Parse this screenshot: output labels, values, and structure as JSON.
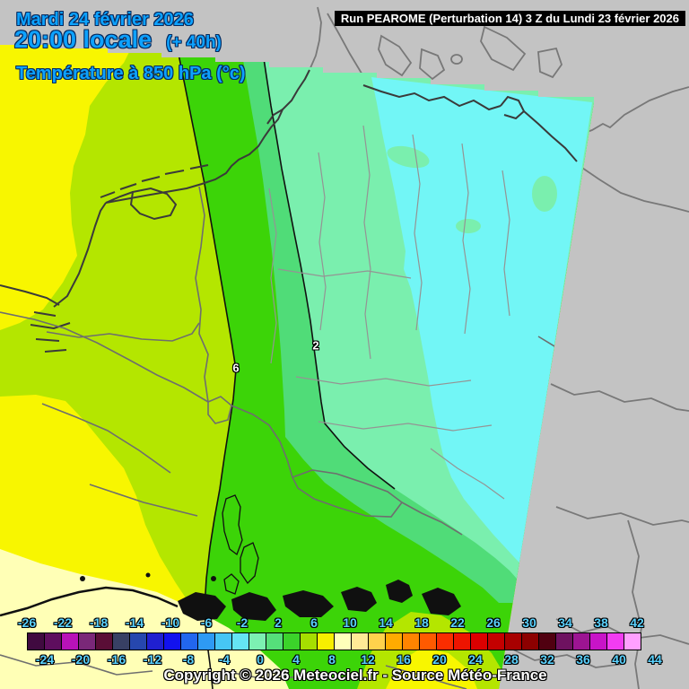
{
  "header": {
    "date_line": "Mardi 24 février 2026",
    "time_line": "20:00 locale",
    "time_offset": "(+ 40h)",
    "param_line": "Température à 850 hPa (°c)",
    "text_color": "#0da2ff"
  },
  "run_banner": {
    "text": "Run PEAROME (Perturbation 14) 3 Z du Lundi 23 février 2026"
  },
  "map": {
    "isotherms": [
      {
        "label": "6"
      },
      {
        "label": "2"
      }
    ],
    "region_colors": {
      "outside": "#c3c3c3",
      "pale_yellow": "#ffffb6",
      "yellow": "#f8f600",
      "yellow_green": "#b4e600",
      "green": "#3cd408",
      "cool_green": "#50dc78",
      "spring_green": "#7aefae",
      "cyan": "#72f6f6"
    },
    "line_colors": {
      "coast_inside": "#3a3a3a",
      "coast_outside": "#787878",
      "border": "#6e6e6e",
      "state_border": "#949494",
      "isotherm": "#101010"
    }
  },
  "colorbar": {
    "label_color": "#5ad2ff",
    "top_labels": [
      "-26",
      "-22",
      "-18",
      "-14",
      "-10",
      "-6",
      "-2",
      "2",
      "6",
      "10",
      "14",
      "18",
      "22",
      "26",
      "30",
      "34",
      "38",
      "42"
    ],
    "bottom_labels": [
      "-24",
      "-20",
      "-16",
      "-12",
      "-8",
      "-4",
      "0",
      "4",
      "8",
      "12",
      "16",
      "20",
      "24",
      "28",
      "32",
      "36",
      "40",
      "44"
    ],
    "box_colors": [
      "#400a40",
      "#5e0e5e",
      "#b812b8",
      "#7a2878",
      "#5a0e36",
      "#384064",
      "#2647ae",
      "#2020d0",
      "#1212ee",
      "#2266ee",
      "#2e9af4",
      "#46c6f4",
      "#65e5f4",
      "#7cf0b2",
      "#55df7a",
      "#3bd32a",
      "#a6df00",
      "#f8ef00",
      "#ffffba",
      "#ffea96",
      "#ffd24c",
      "#ffab00",
      "#ff8400",
      "#ff5a00",
      "#fa2d00",
      "#ee1400",
      "#dc0000",
      "#c40000",
      "#a80000",
      "#8c0000",
      "#500010",
      "#6e1260",
      "#9c1492",
      "#c814c8",
      "#f23cf2",
      "#ffa0ff"
    ]
  },
  "copyright": "Copyright © 2026 Meteociel.fr - Source Météo-France"
}
